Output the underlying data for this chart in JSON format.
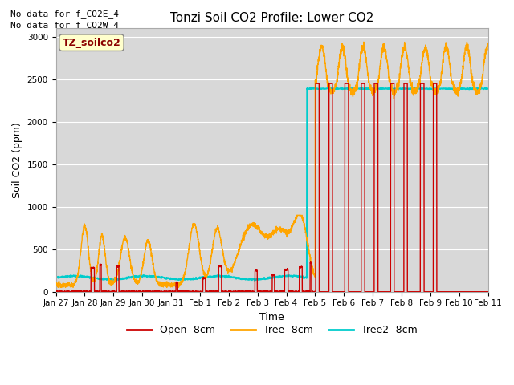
{
  "title": "Tonzi Soil CO2 Profile: Lower CO2",
  "xlabel": "Time",
  "ylabel": "Soil CO2 (ppm)",
  "ylim": [
    0,
    3100
  ],
  "yticks": [
    0,
    500,
    1000,
    1500,
    2000,
    2500,
    3000
  ],
  "no_data_text": [
    "No data for f_CO2E_4",
    "No data for f_CO2W_4"
  ],
  "legend_label": "TZ_soilco2",
  "legend_entries": [
    "Open -8cm",
    "Tree -8cm",
    "Tree2 -8cm"
  ],
  "orange_color": "#ffa500",
  "red_color": "#cc0000",
  "cyan_color": "#00cccc",
  "axis_facecolor": "#d8d8d8",
  "title_fontsize": 11,
  "xtick_labels": [
    "Jan 27",
    "Jan 28",
    "Jan 29",
    "Jan 30",
    "Jan 31",
    "Feb 1",
    "Feb 2",
    "Feb 3",
    "Feb 4",
    "Feb 5",
    "Feb 6",
    "Feb 7",
    "Feb 8",
    "Feb 9",
    "Feb 10",
    "Feb 11"
  ],
  "xlim": [
    0,
    15
  ]
}
